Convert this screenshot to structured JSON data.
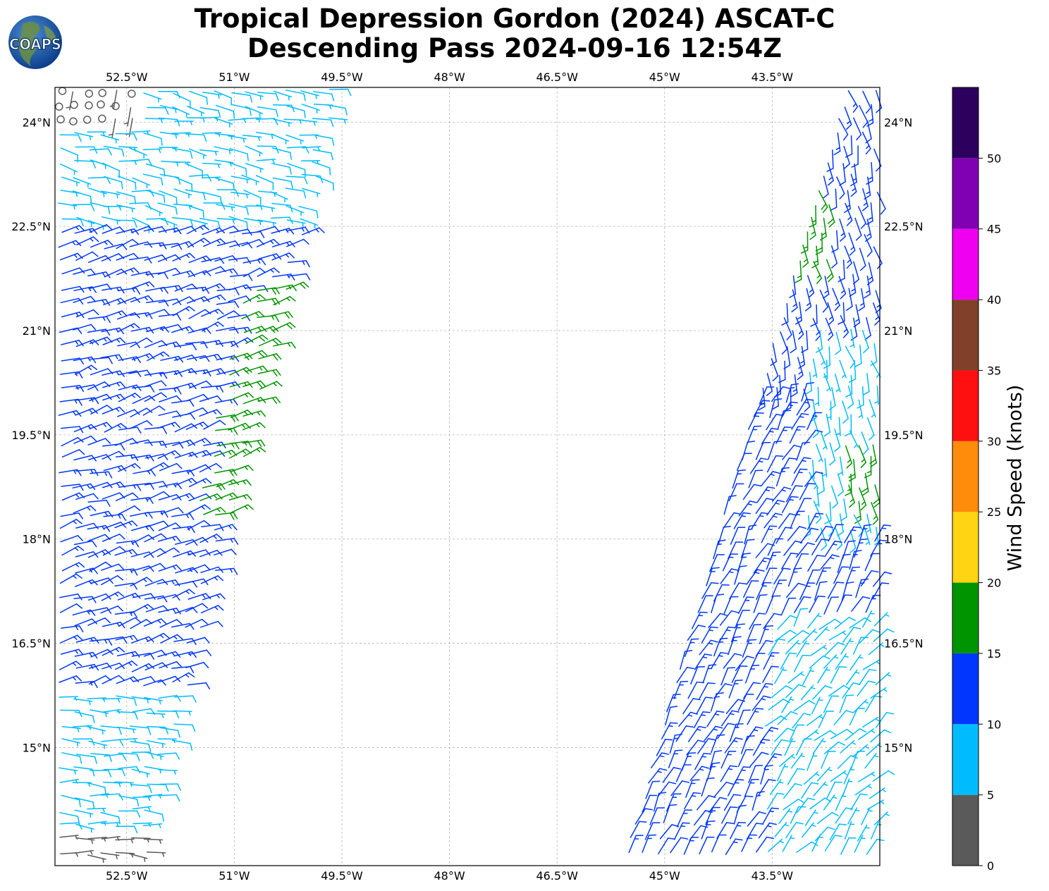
{
  "title": {
    "line1": "Tropical Depression Gordon (2024) ASCAT-C",
    "line2": "Descending Pass 2024-09-16 12:54Z"
  },
  "logo": {
    "text": "COAPS",
    "icon": "globe-logo-icon"
  },
  "map": {
    "lon_range": [
      -53.5,
      -42.0
    ],
    "lat_range": [
      13.3,
      24.5
    ],
    "lon_ticks": [
      "52.5°W",
      "51°W",
      "49.5°W",
      "48°W",
      "46.5°W",
      "45°W",
      "43.5°W"
    ],
    "lat_ticks": [
      "24°N",
      "22.5°N",
      "21°N",
      "19.5°N",
      "18°N",
      "16.5°N",
      "15°N"
    ],
    "grid": true
  },
  "colorbar": {
    "label": "Wind Speed (knots)",
    "ticks": [
      "0",
      "5",
      "10",
      "15",
      "20",
      "25",
      "30",
      "35",
      "40",
      "45",
      "50"
    ],
    "bins": [
      {
        "from": 0,
        "to": 5,
        "color": "#5a5a5a"
      },
      {
        "from": 5,
        "to": 10,
        "color": "#00bcff"
      },
      {
        "from": 10,
        "to": 15,
        "color": "#0036ff"
      },
      {
        "from": 15,
        "to": 20,
        "color": "#009400"
      },
      {
        "from": 20,
        "to": 25,
        "color": "#ffd412"
      },
      {
        "from": 25,
        "to": 30,
        "color": "#ff8c0a"
      },
      {
        "from": 30,
        "to": 35,
        "color": "#ff1010"
      },
      {
        "from": 35,
        "to": 40,
        "color": "#80402a"
      },
      {
        "from": 40,
        "to": 45,
        "color": "#f000f0"
      },
      {
        "from": 45,
        "to": 50,
        "color": "#8000b4"
      },
      {
        "from": 50,
        "to": 55,
        "color": "#2d005f"
      }
    ]
  }
}
